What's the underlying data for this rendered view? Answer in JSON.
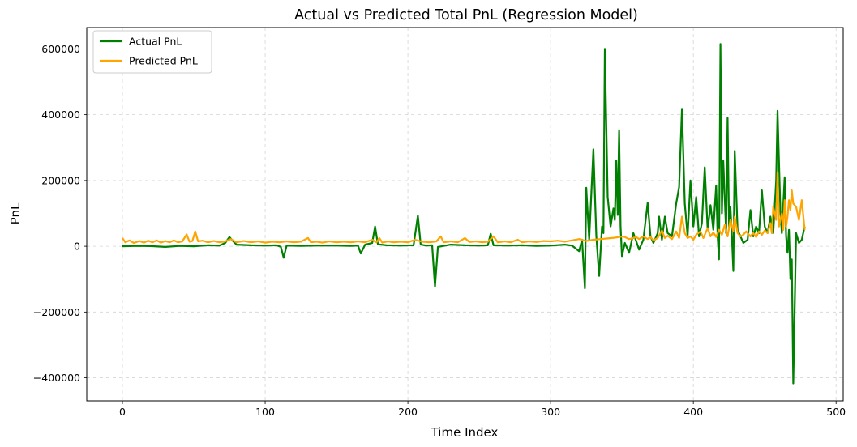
{
  "chart_data": {
    "type": "line",
    "title": "Actual vs Predicted Total PnL (Regression Model)",
    "xlabel": "Time Index",
    "ylabel": "PnL",
    "xlim": [
      -25,
      505
    ],
    "ylim": [
      -470000,
      665000
    ],
    "xticks": [
      0,
      100,
      200,
      300,
      400,
      500
    ],
    "yticks": [
      -400000,
      -200000,
      0,
      200000,
      400000,
      600000
    ],
    "grid": true,
    "legend_position": "top-left",
    "series": [
      {
        "name": "Actual PnL",
        "color": "#008000",
        "points": [
          [
            0,
            0
          ],
          [
            10,
            1000
          ],
          [
            20,
            500
          ],
          [
            30,
            -2000
          ],
          [
            40,
            1000
          ],
          [
            50,
            0
          ],
          [
            60,
            3000
          ],
          [
            68,
            2000
          ],
          [
            72,
            10000
          ],
          [
            75,
            28000
          ],
          [
            77,
            18000
          ],
          [
            80,
            5000
          ],
          [
            90,
            3000
          ],
          [
            100,
            2000
          ],
          [
            108,
            3000
          ],
          [
            111,
            -2000
          ],
          [
            113,
            -35000
          ],
          [
            115,
            2000
          ],
          [
            125,
            1000
          ],
          [
            135,
            2000
          ],
          [
            150,
            2000
          ],
          [
            160,
            1000
          ],
          [
            165,
            2000
          ],
          [
            167,
            -22000
          ],
          [
            170,
            5000
          ],
          [
            175,
            10000
          ],
          [
            177,
            60000
          ],
          [
            179,
            6000
          ],
          [
            185,
            3000
          ],
          [
            195,
            2000
          ],
          [
            204,
            3000
          ],
          [
            207,
            93000
          ],
          [
            209,
            5000
          ],
          [
            213,
            2000
          ],
          [
            217,
            3000
          ],
          [
            219,
            -123000
          ],
          [
            221,
            -2000
          ],
          [
            230,
            5000
          ],
          [
            240,
            3000
          ],
          [
            250,
            2000
          ],
          [
            256,
            3000
          ],
          [
            258,
            38000
          ],
          [
            260,
            3000
          ],
          [
            270,
            2000
          ],
          [
            280,
            3000
          ],
          [
            290,
            1000
          ],
          [
            300,
            2000
          ],
          [
            310,
            5000
          ],
          [
            315,
            2000
          ],
          [
            320,
            -15000
          ],
          [
            322,
            20000
          ],
          [
            324,
            -128000
          ],
          [
            325,
            178000
          ],
          [
            327,
            20000
          ],
          [
            330,
            295000
          ],
          [
            332,
            30000
          ],
          [
            334,
            -90000
          ],
          [
            336,
            60000
          ],
          [
            337,
            40000
          ],
          [
            338,
            600000
          ],
          [
            340,
            150000
          ],
          [
            342,
            60000
          ],
          [
            344,
            115000
          ],
          [
            345,
            80000
          ],
          [
            346,
            260000
          ],
          [
            347,
            95000
          ],
          [
            348,
            353000
          ],
          [
            349,
            60000
          ],
          [
            350,
            -30000
          ],
          [
            352,
            10000
          ],
          [
            355,
            -20000
          ],
          [
            358,
            40000
          ],
          [
            362,
            -10000
          ],
          [
            365,
            20000
          ],
          [
            368,
            132000
          ],
          [
            370,
            30000
          ],
          [
            372,
            10000
          ],
          [
            375,
            40000
          ],
          [
            376,
            90000
          ],
          [
            378,
            20000
          ],
          [
            380,
            90000
          ],
          [
            382,
            40000
          ],
          [
            385,
            30000
          ],
          [
            388,
            130000
          ],
          [
            390,
            180000
          ],
          [
            392,
            418000
          ],
          [
            394,
            130000
          ],
          [
            396,
            30000
          ],
          [
            398,
            200000
          ],
          [
            400,
            60000
          ],
          [
            402,
            150000
          ],
          [
            404,
            30000
          ],
          [
            406,
            70000
          ],
          [
            408,
            240000
          ],
          [
            410,
            50000
          ],
          [
            412,
            125000
          ],
          [
            414,
            50000
          ],
          [
            416,
            185000
          ],
          [
            417,
            30000
          ],
          [
            418,
            -40000
          ],
          [
            419,
            615000
          ],
          [
            420,
            100000
          ],
          [
            421,
            260000
          ],
          [
            423,
            40000
          ],
          [
            424,
            390000
          ],
          [
            425,
            60000
          ],
          [
            426,
            120000
          ],
          [
            427,
            30000
          ],
          [
            428,
            -75000
          ],
          [
            429,
            290000
          ],
          [
            431,
            50000
          ],
          [
            433,
            30000
          ],
          [
            435,
            10000
          ],
          [
            438,
            20000
          ],
          [
            440,
            110000
          ],
          [
            442,
            30000
          ],
          [
            444,
            60000
          ],
          [
            446,
            40000
          ],
          [
            448,
            170000
          ],
          [
            450,
            60000
          ],
          [
            452,
            40000
          ],
          [
            454,
            90000
          ],
          [
            456,
            40000
          ],
          [
            458,
            200000
          ],
          [
            459,
            412000
          ],
          [
            461,
            110000
          ],
          [
            462,
            40000
          ],
          [
            464,
            210000
          ],
          [
            465,
            30000
          ],
          [
            466,
            -20000
          ],
          [
            467,
            50000
          ],
          [
            468,
            -100000
          ],
          [
            469,
            -40000
          ],
          [
            470,
            -417000
          ],
          [
            472,
            40000
          ],
          [
            474,
            10000
          ],
          [
            476,
            20000
          ],
          [
            478,
            60000
          ]
        ]
      },
      {
        "name": "Predicted PnL",
        "color": "#ffa500",
        "points": [
          [
            0,
            25000
          ],
          [
            2,
            12000
          ],
          [
            5,
            18000
          ],
          [
            8,
            10000
          ],
          [
            12,
            16000
          ],
          [
            15,
            11000
          ],
          [
            18,
            17000
          ],
          [
            21,
            12000
          ],
          [
            24,
            18000
          ],
          [
            27,
            11000
          ],
          [
            30,
            16000
          ],
          [
            33,
            12000
          ],
          [
            36,
            18000
          ],
          [
            39,
            12000
          ],
          [
            42,
            15000
          ],
          [
            45,
            36000
          ],
          [
            47,
            14000
          ],
          [
            49,
            16000
          ],
          [
            51,
            45000
          ],
          [
            53,
            15000
          ],
          [
            56,
            17000
          ],
          [
            60,
            12000
          ],
          [
            64,
            16000
          ],
          [
            68,
            12000
          ],
          [
            72,
            15000
          ],
          [
            76,
            22000
          ],
          [
            80,
            12000
          ],
          [
            85,
            16000
          ],
          [
            90,
            12000
          ],
          [
            95,
            15000
          ],
          [
            100,
            11000
          ],
          [
            105,
            14000
          ],
          [
            110,
            12000
          ],
          [
            115,
            15000
          ],
          [
            120,
            12000
          ],
          [
            125,
            14000
          ],
          [
            130,
            25000
          ],
          [
            132,
            12000
          ],
          [
            136,
            14000
          ],
          [
            140,
            11000
          ],
          [
            145,
            15000
          ],
          [
            150,
            12000
          ],
          [
            155,
            14000
          ],
          [
            160,
            12000
          ],
          [
            165,
            15000
          ],
          [
            170,
            12000
          ],
          [
            175,
            20000
          ],
          [
            178,
            12000
          ],
          [
            180,
            25000
          ],
          [
            182,
            11000
          ],
          [
            186,
            15000
          ],
          [
            190,
            12000
          ],
          [
            195,
            14000
          ],
          [
            200,
            12000
          ],
          [
            205,
            20000
          ],
          [
            210,
            14000
          ],
          [
            215,
            12000
          ],
          [
            220,
            15000
          ],
          [
            223,
            30000
          ],
          [
            225,
            12000
          ],
          [
            230,
            15000
          ],
          [
            235,
            12000
          ],
          [
            240,
            25000
          ],
          [
            243,
            13000
          ],
          [
            248,
            15000
          ],
          [
            252,
            12000
          ],
          [
            256,
            14000
          ],
          [
            260,
            30000
          ],
          [
            263,
            12000
          ],
          [
            268,
            15000
          ],
          [
            272,
            12000
          ],
          [
            277,
            20000
          ],
          [
            280,
            12000
          ],
          [
            285,
            15000
          ],
          [
            290,
            13000
          ],
          [
            295,
            16000
          ],
          [
            300,
            15000
          ],
          [
            305,
            17000
          ],
          [
            310,
            14000
          ],
          [
            315,
            18000
          ],
          [
            320,
            22000
          ],
          [
            325,
            16000
          ],
          [
            330,
            20000
          ],
          [
            335,
            22000
          ],
          [
            340,
            24000
          ],
          [
            345,
            26000
          ],
          [
            348,
            28000
          ],
          [
            350,
            30000
          ],
          [
            352,
            28000
          ],
          [
            355,
            22000
          ],
          [
            358,
            25000
          ],
          [
            360,
            28000
          ],
          [
            362,
            22000
          ],
          [
            365,
            30000
          ],
          [
            368,
            22000
          ],
          [
            370,
            28000
          ],
          [
            372,
            18000
          ],
          [
            375,
            25000
          ],
          [
            378,
            48000
          ],
          [
            380,
            25000
          ],
          [
            382,
            32000
          ],
          [
            385,
            22000
          ],
          [
            388,
            45000
          ],
          [
            390,
            25000
          ],
          [
            392,
            90000
          ],
          [
            394,
            40000
          ],
          [
            396,
            25000
          ],
          [
            398,
            30000
          ],
          [
            400,
            20000
          ],
          [
            402,
            35000
          ],
          [
            405,
            45000
          ],
          [
            407,
            25000
          ],
          [
            410,
            55000
          ],
          [
            412,
            30000
          ],
          [
            414,
            42000
          ],
          [
            416,
            28000
          ],
          [
            418,
            50000
          ],
          [
            420,
            35000
          ],
          [
            422,
            65000
          ],
          [
            424,
            30000
          ],
          [
            426,
            80000
          ],
          [
            428,
            45000
          ],
          [
            429,
            90000
          ],
          [
            431,
            40000
          ],
          [
            433,
            30000
          ],
          [
            435,
            35000
          ],
          [
            437,
            45000
          ],
          [
            440,
            30000
          ],
          [
            442,
            40000
          ],
          [
            444,
            28000
          ],
          [
            446,
            45000
          ],
          [
            448,
            35000
          ],
          [
            450,
            48000
          ],
          [
            452,
            40000
          ],
          [
            454,
            70000
          ],
          [
            455,
            40000
          ],
          [
            456,
            120000
          ],
          [
            458,
            80000
          ],
          [
            459,
            225000
          ],
          [
            460,
            60000
          ],
          [
            462,
            100000
          ],
          [
            463,
            50000
          ],
          [
            464,
            140000
          ],
          [
            465,
            60000
          ],
          [
            466,
            90000
          ],
          [
            467,
            140000
          ],
          [
            468,
            110000
          ],
          [
            469,
            170000
          ],
          [
            470,
            130000
          ],
          [
            472,
            120000
          ],
          [
            474,
            80000
          ],
          [
            476,
            140000
          ],
          [
            478,
            50000
          ]
        ]
      }
    ]
  }
}
